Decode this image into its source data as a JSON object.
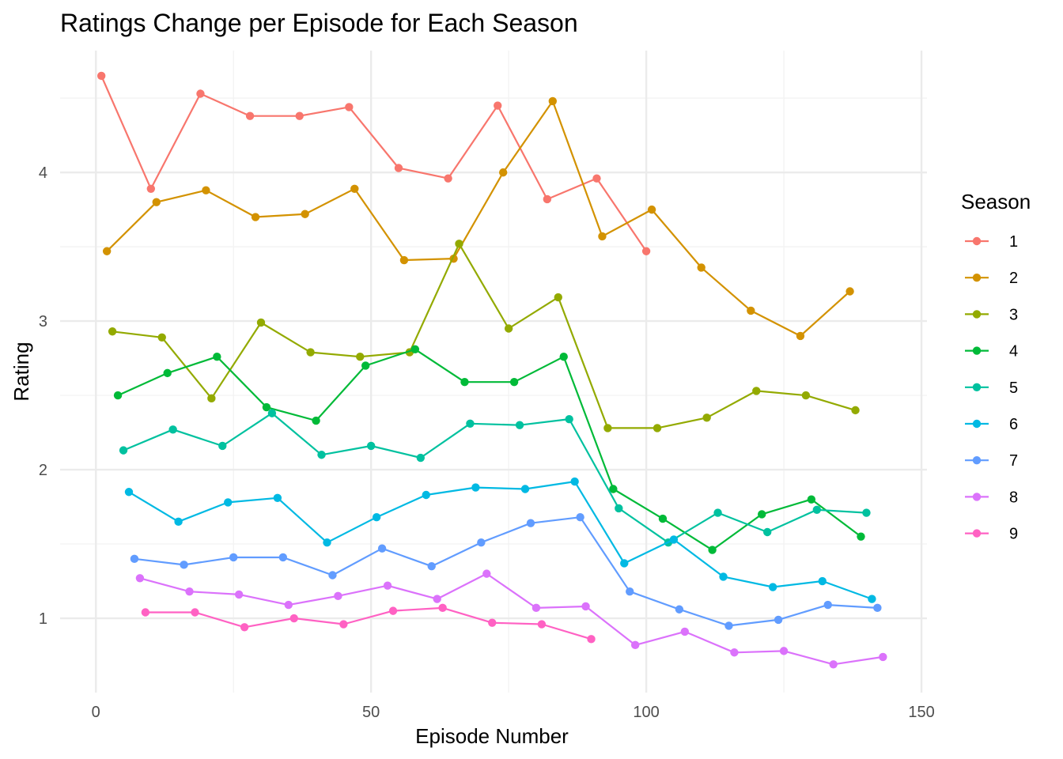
{
  "chart_data": {
    "type": "line",
    "title": "Ratings Change per Episode for Each Season",
    "xlabel": "Episode Number",
    "ylabel": "Rating",
    "xlim": [
      -6.5,
      151
    ],
    "ylim": [
      0.5,
      4.82
    ],
    "xticks": [
      0,
      50,
      100,
      150
    ],
    "yticks": [
      1,
      2,
      3,
      4
    ],
    "grid": true,
    "legend": {
      "title": "Season",
      "position": "right"
    },
    "series": [
      {
        "name": "1",
        "color": "#F8766D",
        "x": [
          1,
          10,
          19,
          28,
          37,
          46,
          55,
          64,
          73,
          82,
          91,
          100
        ],
        "y": [
          4.65,
          3.89,
          4.53,
          4.38,
          4.38,
          4.44,
          4.03,
          3.96,
          4.45,
          3.82,
          3.96,
          3.47
        ]
      },
      {
        "name": "2",
        "color": "#D39200",
        "x": [
          2,
          11,
          20,
          29,
          38,
          47,
          56,
          65,
          74,
          83,
          92,
          101,
          110,
          119,
          128,
          137
        ],
        "y": [
          3.47,
          3.8,
          3.88,
          3.7,
          3.72,
          3.89,
          3.41,
          3.42,
          4.0,
          4.48,
          3.57,
          3.75,
          3.36,
          3.07,
          2.9,
          3.2
        ]
      },
      {
        "name": "3",
        "color": "#93AA00",
        "x": [
          3,
          12,
          21,
          30,
          39,
          48,
          57,
          66,
          75,
          84,
          93,
          102,
          111,
          120,
          129,
          138
        ],
        "y": [
          2.93,
          2.89,
          2.48,
          2.99,
          2.79,
          2.76,
          2.79,
          3.52,
          2.95,
          3.16,
          2.28,
          2.28,
          2.35,
          2.53,
          2.5,
          2.4
        ]
      },
      {
        "name": "4",
        "color": "#00BA38",
        "x": [
          4,
          13,
          22,
          31,
          40,
          49,
          58,
          67,
          76,
          85,
          94,
          103,
          112,
          121,
          130,
          139
        ],
        "y": [
          2.5,
          2.65,
          2.76,
          2.42,
          2.33,
          2.7,
          2.81,
          2.59,
          2.59,
          2.76,
          1.87,
          1.67,
          1.46,
          1.7,
          1.8,
          1.55
        ]
      },
      {
        "name": "5",
        "color": "#00C19F",
        "x": [
          5,
          14,
          23,
          32,
          41,
          50,
          59,
          68,
          77,
          86,
          95,
          104,
          113,
          122,
          131,
          140
        ],
        "y": [
          2.13,
          2.27,
          2.16,
          2.38,
          2.1,
          2.16,
          2.08,
          2.31,
          2.3,
          2.34,
          1.74,
          1.51,
          1.71,
          1.58,
          1.73,
          1.71
        ]
      },
      {
        "name": "6",
        "color": "#00B9E3",
        "x": [
          6,
          15,
          24,
          33,
          42,
          51,
          60,
          69,
          78,
          87,
          96,
          105,
          114,
          123,
          132,
          141
        ],
        "y": [
          1.85,
          1.65,
          1.78,
          1.81,
          1.51,
          1.68,
          1.83,
          1.88,
          1.87,
          1.92,
          1.37,
          1.53,
          1.28,
          1.21,
          1.25,
          1.13
        ]
      },
      {
        "name": "7",
        "color": "#619CFF",
        "x": [
          7,
          16,
          25,
          34,
          43,
          52,
          61,
          70,
          79,
          88,
          97,
          106,
          115,
          124,
          133,
          142
        ],
        "y": [
          1.4,
          1.36,
          1.41,
          1.41,
          1.29,
          1.47,
          1.35,
          1.51,
          1.64,
          1.68,
          1.18,
          1.06,
          0.95,
          0.99,
          1.09,
          1.07
        ]
      },
      {
        "name": "8",
        "color": "#DB72FB",
        "x": [
          8,
          17,
          26,
          35,
          44,
          53,
          62,
          71,
          80,
          89,
          98,
          107,
          116,
          125,
          134,
          143
        ],
        "y": [
          1.27,
          1.18,
          1.16,
          1.09,
          1.15,
          1.22,
          1.13,
          1.3,
          1.07,
          1.08,
          0.82,
          0.91,
          0.77,
          0.78,
          0.69,
          0.74
        ]
      },
      {
        "name": "9",
        "color": "#FF61C3",
        "x": [
          9,
          18,
          27,
          36,
          45,
          54,
          63,
          72,
          81,
          90
        ],
        "y": [
          1.04,
          1.04,
          0.94,
          1.0,
          0.96,
          1.05,
          1.07,
          0.97,
          0.96,
          0.86
        ]
      }
    ]
  }
}
